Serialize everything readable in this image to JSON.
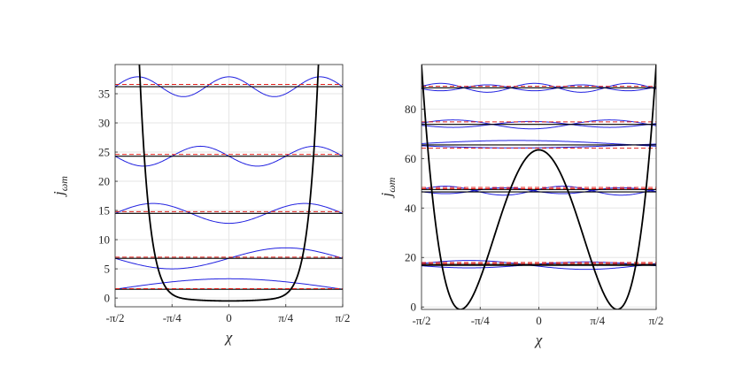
{
  "chart_data": [
    {
      "type": "line",
      "xlabel": "χ",
      "ylabel_base": "j",
      "ylabel_sub": "ωm",
      "xlim": [
        -1.5708,
        1.5708
      ],
      "ylim": [
        -1.5,
        40
      ],
      "xticks": [
        {
          "value": -1.5708,
          "label": "-π/2"
        },
        {
          "value": -0.7854,
          "label": "-π/4"
        },
        {
          "value": 0,
          "label": "0"
        },
        {
          "value": 0.7854,
          "label": "π/4"
        },
        {
          "value": 1.5708,
          "label": "π/2"
        }
      ],
      "yticks": [
        0,
        5,
        10,
        15,
        20,
        25,
        30,
        35
      ],
      "grid": true,
      "potential": {
        "color": "#000000",
        "kind": "well",
        "min": -0.5,
        "steepness": 9
      },
      "levels_black": [
        1.5,
        6.8,
        14.5,
        24.3,
        36.2
      ],
      "levels_red_dashed": [
        1.6,
        7.0,
        14.8,
        24.6,
        36.6
      ],
      "wavefunctions": [
        {
          "base": 1.5,
          "amp": 1.8,
          "n": 0
        },
        {
          "base": 6.8,
          "amp": 1.8,
          "n": 1
        },
        {
          "base": 14.5,
          "amp": 1.7,
          "n": 2
        },
        {
          "base": 24.3,
          "amp": 1.7,
          "n": 3
        },
        {
          "base": 36.2,
          "amp": 1.7,
          "n": 4
        }
      ],
      "colors": {
        "potential": "#000000",
        "levels": "#000000",
        "approx": "#e0201c",
        "wave": "#2020e0"
      }
    },
    {
      "type": "line",
      "xlabel": "χ",
      "ylabel_base": "j",
      "ylabel_sub": "ωm",
      "xlim": [
        -1.5708,
        1.5708
      ],
      "ylim": [
        -1,
        98
      ],
      "xticks": [
        {
          "value": -1.5708,
          "label": "-π/2"
        },
        {
          "value": -0.7854,
          "label": "-π/4"
        },
        {
          "value": 0,
          "label": "0"
        },
        {
          "value": 0.7854,
          "label": "π/4"
        },
        {
          "value": 1.5708,
          "label": "π/2"
        }
      ],
      "yticks": [
        0,
        20,
        40,
        60,
        80
      ],
      "grid": true,
      "potential": {
        "color": "#000000",
        "kind": "double-well",
        "barrier": 63.5,
        "min": -1,
        "min_at": 1.05
      },
      "levels_black": [
        16.8,
        17.2,
        46.5,
        47.5,
        65.5,
        73.8,
        88.6
      ],
      "levels_red_dashed": [
        17.5,
        18.0,
        47.8,
        48.3,
        64.2,
        74.8,
        89.2
      ],
      "wavefunctions": [
        {
          "base": 17.0,
          "amp": 2.0,
          "n": 1
        },
        {
          "base": 47.0,
          "amp": 2.0,
          "n": 3
        },
        {
          "base": 65.5,
          "amp": 2.0,
          "n": 0
        },
        {
          "base": 73.8,
          "amp": 2.0,
          "n": 2
        },
        {
          "base": 88.6,
          "amp": 2.0,
          "n": 4
        }
      ],
      "colors": {
        "potential": "#000000",
        "levels": "#000000",
        "approx": "#e0201c",
        "wave": "#2020e0"
      }
    }
  ]
}
